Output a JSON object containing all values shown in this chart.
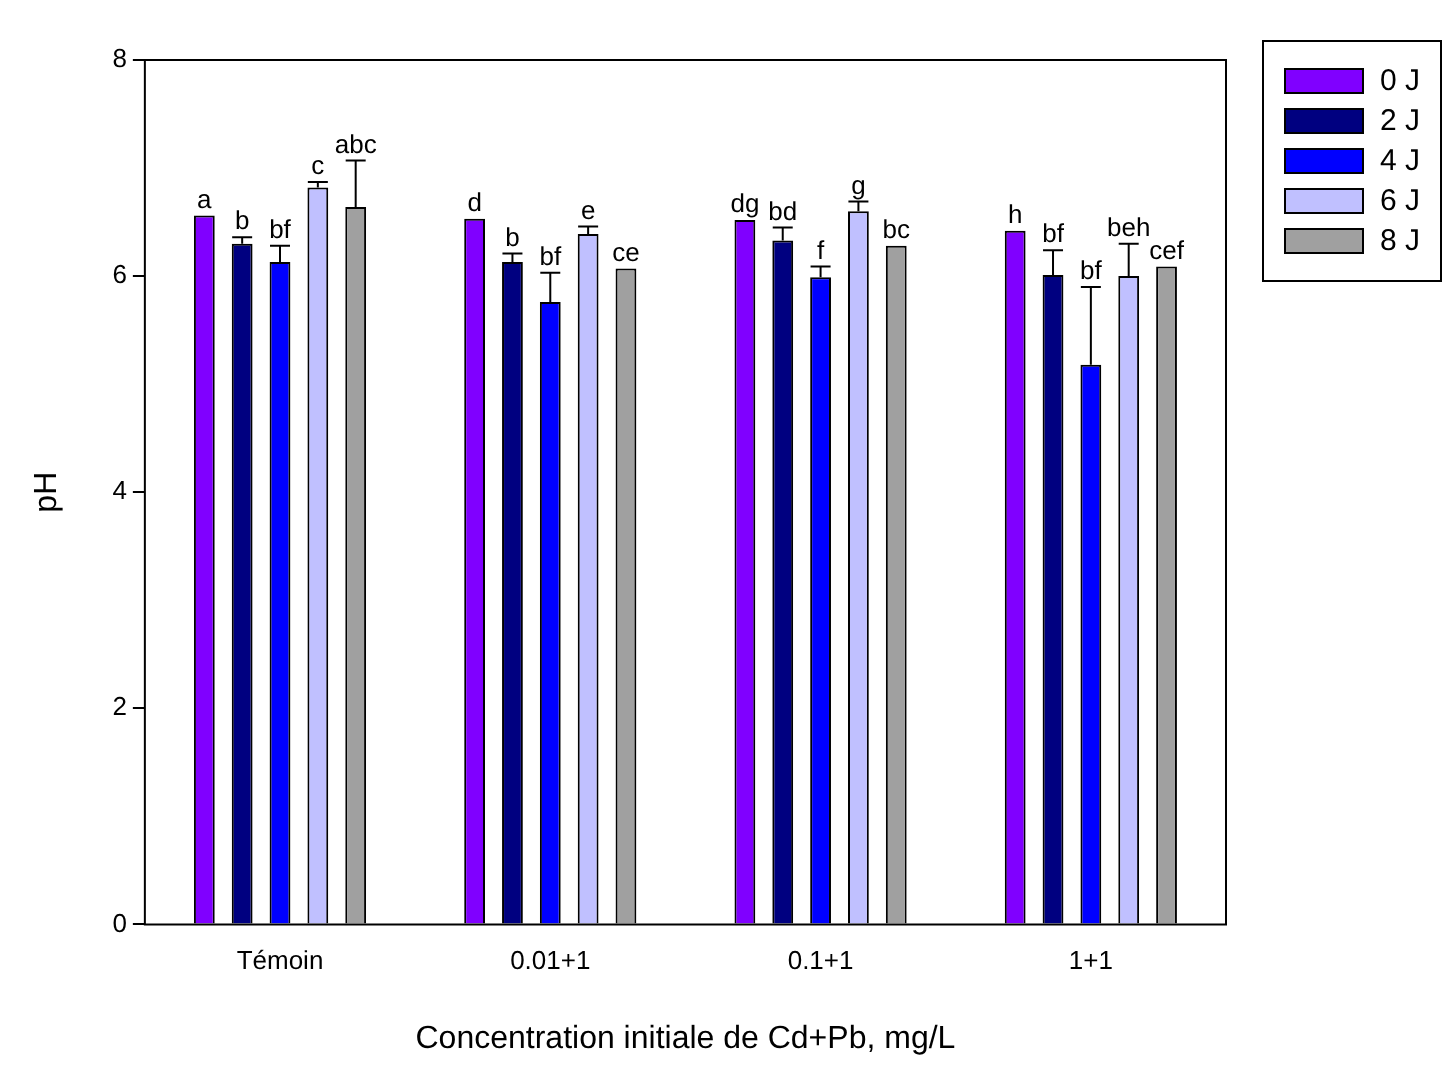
{
  "chart_data": {
    "type": "bar",
    "xlabel": "Concentration initiale de Cd+Pb, mg/L",
    "ylabel": "pH",
    "categories": [
      "Témoin",
      "0.01+1",
      "0.1+1",
      "1+1"
    ],
    "series": [
      {
        "name": "0 J",
        "color": "#8000ff",
        "values": [
          6.56,
          6.53,
          6.52,
          6.42
        ],
        "errors": [
          null,
          null,
          null,
          null
        ]
      },
      {
        "name": "2 J",
        "color": "#000080",
        "values": [
          6.3,
          6.13,
          6.33,
          6.01
        ],
        "errors": [
          0.06,
          0.08,
          0.12,
          0.23
        ]
      },
      {
        "name": "4 J",
        "color": "#0000ff",
        "values": [
          6.13,
          5.76,
          5.99,
          5.18
        ],
        "errors": [
          0.15,
          0.27,
          0.1,
          0.72
        ]
      },
      {
        "name": "6 J",
        "color": "#c0c0ff",
        "values": [
          6.82,
          6.39,
          6.6,
          6.0
        ],
        "errors": [
          0.05,
          0.07,
          0.09,
          0.3
        ]
      },
      {
        "name": "8 J",
        "color": "#a0a0a0",
        "values": [
          6.64,
          6.07,
          6.28,
          6.09
        ],
        "errors": [
          0.43,
          null,
          null,
          null
        ]
      }
    ],
    "ylim": [
      0,
      8
    ],
    "yticks": [
      0,
      2,
      4,
      6,
      8
    ],
    "legend": "right",
    "annotations": [
      "a",
      "b",
      "bf",
      "c",
      "abc",
      "d",
      "b",
      "bf",
      "e",
      "ce",
      "dg",
      "bd",
      "f",
      "g",
      "bc",
      "h",
      "bf",
      "bf",
      "beh",
      "cef"
    ]
  }
}
